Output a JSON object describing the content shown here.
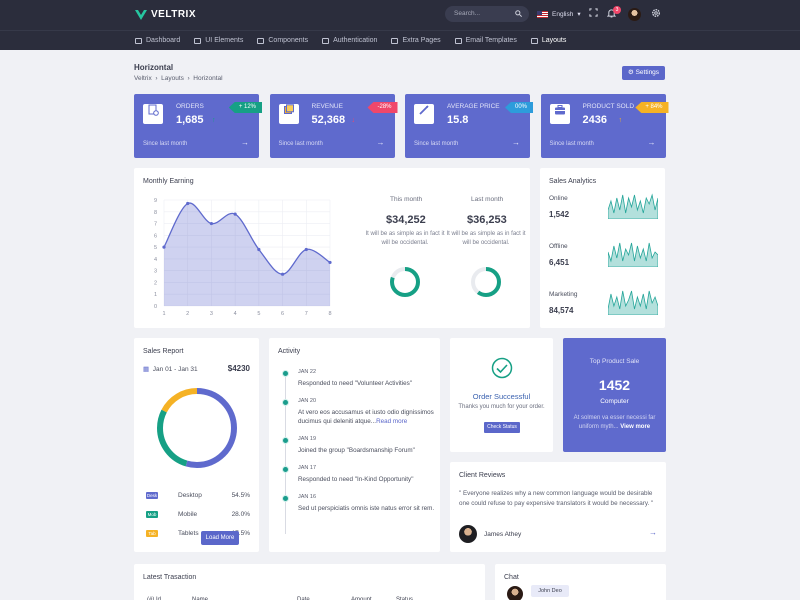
{
  "app": {
    "name": "VELTRIX",
    "brand_color": "#5f6acd"
  },
  "topbar": {
    "search_placeholder": "Search...",
    "language": "English",
    "notification_count": "3"
  },
  "nav": [
    {
      "label": "Dashboard",
      "icon": "home-icon"
    },
    {
      "label": "UI Elements",
      "icon": "layers-icon"
    },
    {
      "label": "Components",
      "icon": "box-icon"
    },
    {
      "label": "Authentication",
      "icon": "lock-icon"
    },
    {
      "label": "Extra Pages",
      "icon": "file-icon"
    },
    {
      "label": "Email Templates",
      "icon": "mail-icon"
    },
    {
      "label": "Layouts",
      "icon": "layout-icon",
      "active": true
    }
  ],
  "page": {
    "title": "Horizontal",
    "breadcrumb": [
      "Veltrix",
      "Layouts",
      "Horizontal"
    ],
    "settings_label": "Settings"
  },
  "stats": [
    {
      "label": "ORDERS",
      "value": "1,685",
      "change": "+ 12%",
      "change_color": "#16a085",
      "trend": "up",
      "since": "Since last month",
      "icon": "orders-icon"
    },
    {
      "label": "REVENUE",
      "value": "52,368",
      "change": "-28%",
      "change_color": "#f0476a",
      "trend": "down",
      "since": "Since last month",
      "icon": "revenue-icon"
    },
    {
      "label": "AVERAGE PRICE",
      "value": "15.8",
      "change": "00%",
      "change_color": "#2d9cdb",
      "trend": "flat",
      "since": "Since last month",
      "icon": "price-tag-icon"
    },
    {
      "label": "PRODUCT SOLD",
      "value": "2436",
      "change": "+ 84%",
      "change_color": "#f5b225",
      "trend": "up",
      "since": "Since last month",
      "icon": "briefcase-icon"
    }
  ],
  "monthly_earning": {
    "title": "Monthly Earning",
    "this_month": {
      "label": "This month",
      "amount": "$34,252",
      "desc": "It will be as simple as in fact it will be occidental.",
      "progress": 0.8
    },
    "last_month": {
      "label": "Last month",
      "amount": "$36,253",
      "desc": "It will be as simple as in fact it will be occidental.",
      "progress": 0.6
    }
  },
  "chart_data": {
    "type": "area",
    "title": "Monthly Earning",
    "xlabel": "",
    "ylabel": "",
    "x": [
      1,
      2,
      3,
      4,
      5,
      6,
      7,
      8
    ],
    "xticks": [
      "1",
      "2",
      "3",
      "4",
      "5",
      "6",
      "7",
      "8"
    ],
    "yticks": [
      "0",
      "1",
      "2",
      "3",
      "4",
      "5",
      "6",
      "7",
      "8",
      "9"
    ],
    "ylim": [
      0,
      9
    ],
    "series": [
      {
        "values": [
          5,
          8.7,
          7,
          7.8,
          4.8,
          2.7,
          4.8,
          3.7
        ]
      }
    ],
    "grid": true,
    "color": "#5f6acd"
  },
  "sales_analytics": {
    "title": "Sales Analytics",
    "items": [
      {
        "label": "Online",
        "value": "1,542"
      },
      {
        "label": "Offline",
        "value": "6,451"
      },
      {
        "label": "Marketing",
        "value": "84,574"
      }
    ],
    "spark_color": "#26a69a"
  },
  "sales_report": {
    "title": "Sales Report",
    "range": "Jan 01 - Jan 31",
    "total": "$4230",
    "rows": [
      {
        "chip": "Desk",
        "name": "Desktop",
        "pct": "54.5%",
        "value": 54.5,
        "color": "#5f6acd"
      },
      {
        "chip": "Mob",
        "name": "Mobile",
        "pct": "28.0%",
        "value": 28.0,
        "color": "#16a085"
      },
      {
        "chip": "Tab",
        "name": "Tablets",
        "pct": "17.5%",
        "value": 17.5,
        "color": "#f5b225"
      }
    ]
  },
  "activity": {
    "title": "Activity",
    "items": [
      {
        "date": "JAN 22",
        "text": "Responded to need \"Volunteer Activities\"",
        "more": ""
      },
      {
        "date": "JAN 20",
        "text": "At vero eos accusamus et iusto odio dignissimos ducimus qui deleniti atque...",
        "more": "Read more"
      },
      {
        "date": "JAN 19",
        "text": "Joined the group \"Boardsmanship Forum\"",
        "more": ""
      },
      {
        "date": "JAN 17",
        "text": "Responded to need \"In-Kind Opportunity\"",
        "more": ""
      },
      {
        "date": "JAN 16",
        "text": "Sed ut perspiciatis omnis iste natus error sit rem.",
        "more": ""
      }
    ],
    "load_more": "Load More"
  },
  "order": {
    "title": "Order Successful",
    "sub": "Thanks you much for your order.",
    "button": "Check Status"
  },
  "top_product": {
    "label": "Top Product Sale",
    "value": "1452",
    "name": "Computer",
    "desc": "At solmen va esser necessi far uniform myth...",
    "more": "View more"
  },
  "client_reviews": {
    "title": "Client Reviews",
    "text": "\" Everyone realizes why a new common language would be desirable one could refuse to pay expensive translators it would be necessary. \"",
    "name": "James Athey"
  },
  "transactions": {
    "title": "Latest Trasaction",
    "columns": [
      "(#) Id",
      "Name",
      "Date",
      "Amount",
      "Status"
    ]
  },
  "chat": {
    "title": "Chat",
    "name": "John Deo"
  }
}
